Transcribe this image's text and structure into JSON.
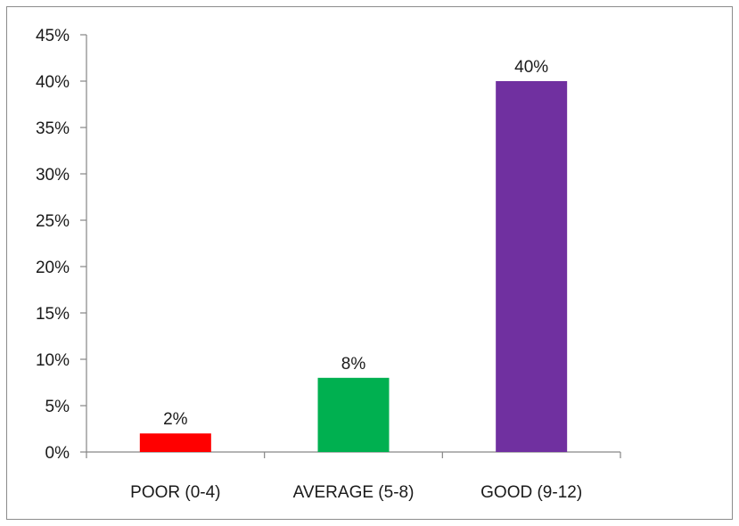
{
  "chart_data": {
    "type": "bar",
    "title": "",
    "xlabel": "",
    "ylabel": "",
    "categories": [
      "POOR (0-4)",
      "AVERAGE (5-8)",
      "GOOD (9-12)"
    ],
    "values": [
      2,
      8,
      40
    ],
    "data_labels": [
      "2%",
      "8%",
      "40%"
    ],
    "colors": [
      "#ff0000",
      "#00b050",
      "#7030a0"
    ],
    "ylim": [
      0,
      45
    ],
    "y_ticks": [
      0,
      5,
      10,
      15,
      20,
      25,
      30,
      35,
      40,
      45
    ],
    "y_tick_labels": [
      "0%",
      "5%",
      "10%",
      "15%",
      "20%",
      "25%",
      "30%",
      "35%",
      "40%",
      "45%"
    ],
    "grid": false,
    "legend": "none"
  }
}
